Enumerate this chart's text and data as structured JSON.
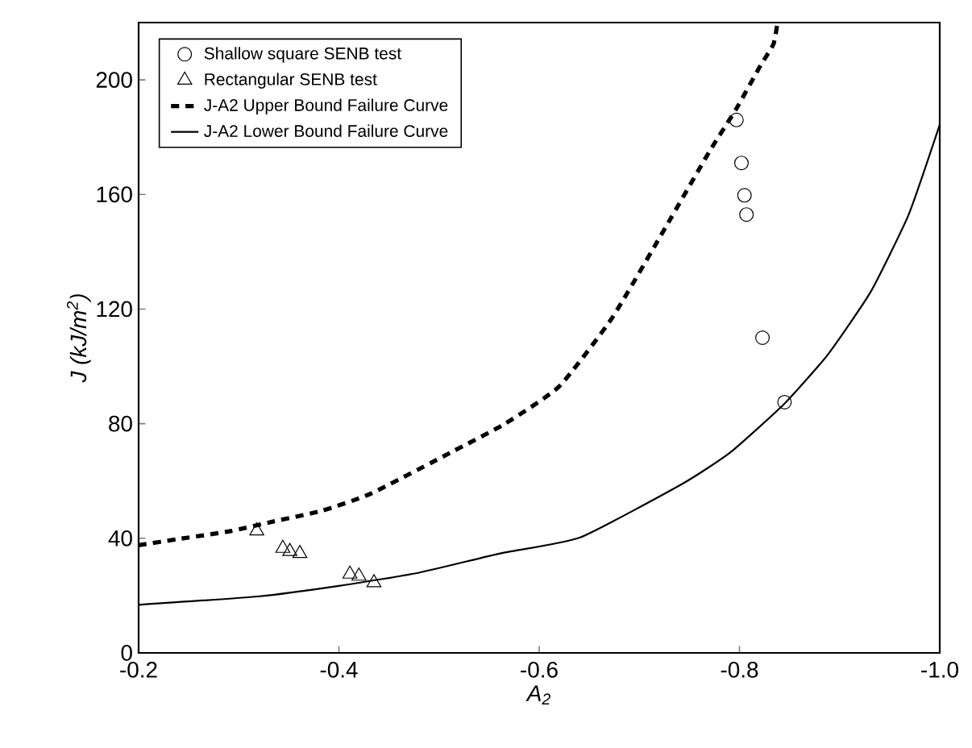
{
  "chart_data": {
    "type": "scatter",
    "xlabel": "A$_{2}$",
    "ylabel": "J (kJ/m$^{2}$)",
    "xlim": [
      -0.2,
      -1.0
    ],
    "ylim": [
      0,
      220
    ],
    "xticks": [
      -0.2,
      -0.4,
      -0.6,
      -0.8,
      {
        "value": -1.0,
        "label": "-1.0"
      }
    ],
    "yticks": [
      0,
      40,
      80,
      120,
      160,
      200
    ],
    "legend": "top left",
    "grid": false,
    "series": [
      {
        "name": "Shallow square SENB test",
        "marker": "circle",
        "color": "#000000",
        "x": [
          -0.797,
          -0.802,
          -0.805,
          -0.807,
          -0.823,
          -0.845
        ],
        "values": [
          186,
          171,
          159.7,
          153,
          110,
          87.5
        ]
      },
      {
        "name": "Rectangular SENB test",
        "marker": "triangle",
        "color": "#000000",
        "x": [
          -0.318,
          -0.344,
          -0.351,
          -0.361,
          -0.411,
          -0.42,
          -0.435
        ],
        "values": [
          42.6,
          36.5,
          35.4,
          34.7,
          27.5,
          26.8,
          24.5
        ]
      },
      {
        "name": "J-A2 Upper Bound Failure Curve",
        "type": "line",
        "line_style": "dashed",
        "marker": "none",
        "color": "#000000",
        "x": [
          -0.2,
          -0.239,
          -0.292,
          -0.335,
          -0.383,
          -0.432,
          -0.512,
          -0.566,
          -0.62,
          -0.673,
          -0.727,
          -0.77,
          -0.797,
          -0.821,
          -0.834,
          -0.838
        ],
        "values": [
          37.6,
          39.7,
          42.5,
          45.9,
          49.6,
          55.6,
          70,
          80,
          93,
          117,
          149,
          175,
          190,
          205,
          212.5,
          220
        ]
      },
      {
        "name": "J-A2 Lower Bound Failure Curve",
        "type": "line",
        "line_style": "solid",
        "marker": "none",
        "color": "#000000",
        "x": [
          -0.2,
          -0.319,
          -0.4,
          -0.48,
          -0.561,
          -0.641,
          -0.743,
          -0.791,
          -0.845,
          -0.888,
          -0.931,
          -0.969,
          -1.0
        ],
        "values": [
          16.8,
          19.7,
          23.4,
          28,
          34.7,
          40.3,
          59,
          70,
          87,
          104,
          126,
          153,
          184.4
        ]
      }
    ]
  }
}
